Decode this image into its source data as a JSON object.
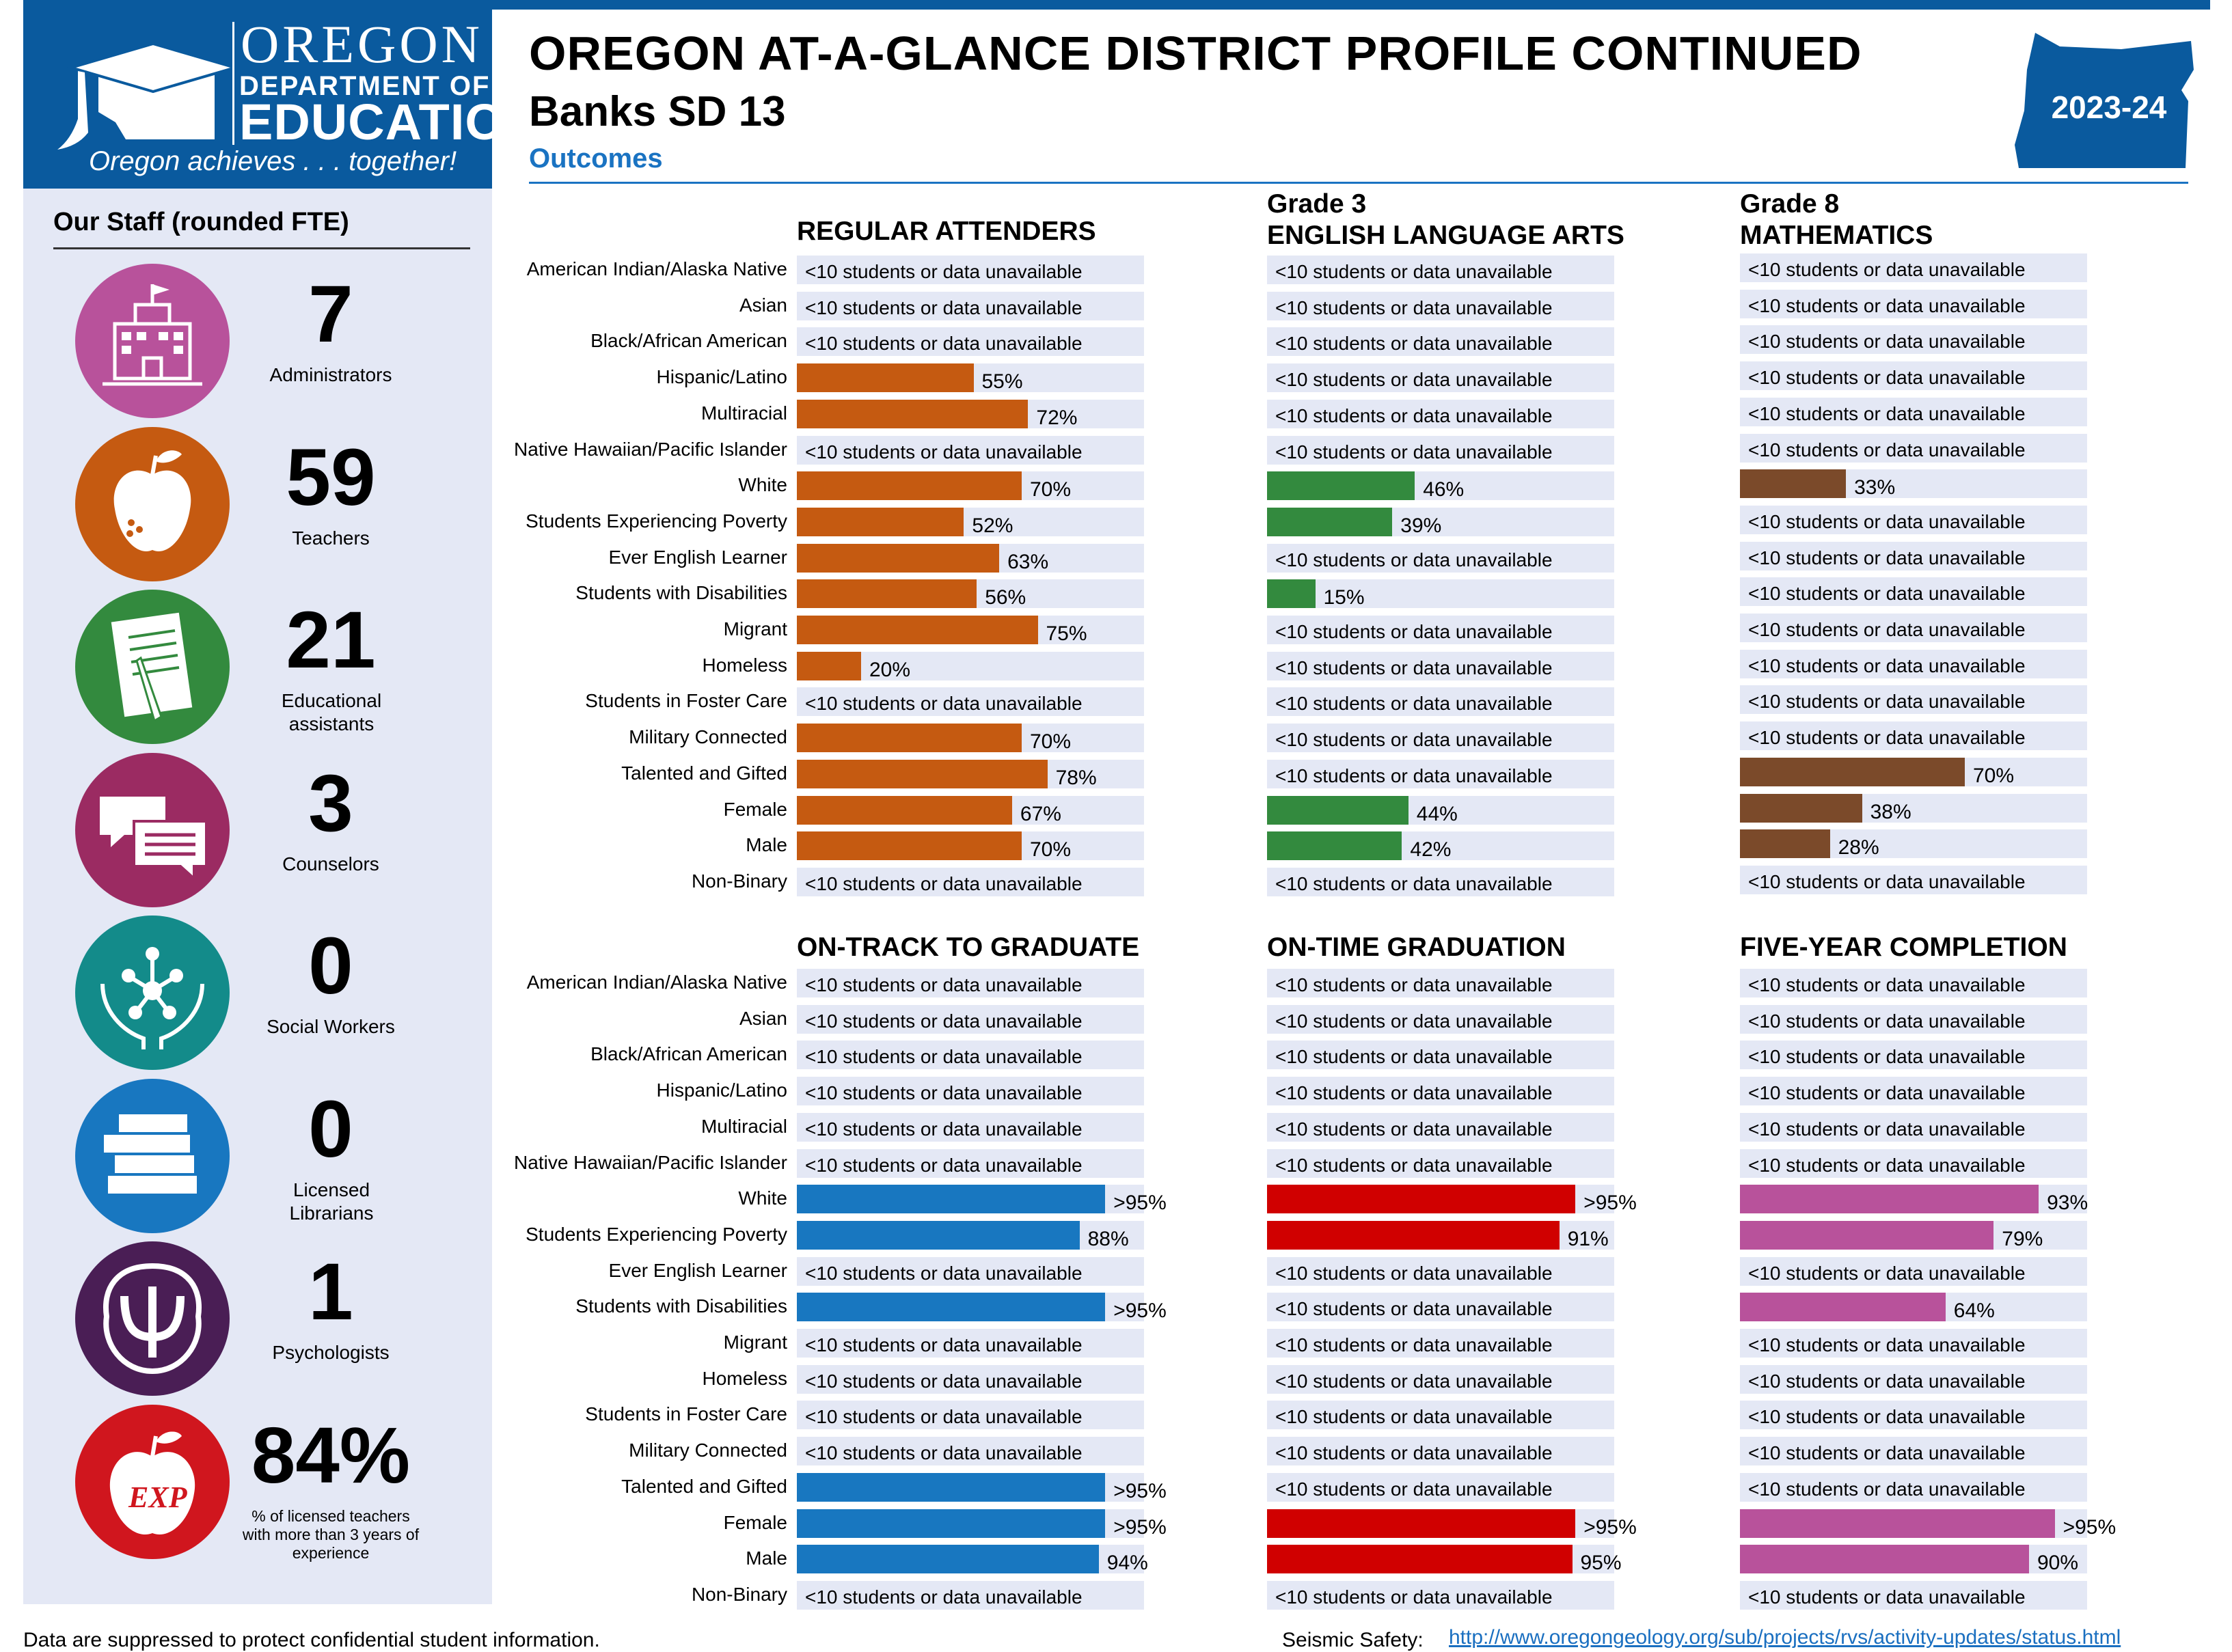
{
  "logo": {
    "oregon": "OREGON",
    "dept": "DEPARTMENT OF",
    "edu": "EDUCATION",
    "tagline": "Oregon achieves . . . together!"
  },
  "header": {
    "title": "OREGON AT-A-GLANCE DISTRICT PROFILE CONTINUED",
    "district": "Banks SD 13",
    "section": "Outcomes",
    "year": "2023-24"
  },
  "colors": {
    "brand": "#0a5a9e",
    "accent": "#1a73c2",
    "track": "#e4e8f5"
  },
  "staff": {
    "title": "Our Staff (rounded FTE)",
    "items": [
      {
        "value": "7",
        "label": "Administrators",
        "icon": "school-building-icon",
        "color": "#b8529b"
      },
      {
        "value": "59",
        "label": "Teachers",
        "icon": "apple-icon",
        "color": "#c55a11"
      },
      {
        "value": "21",
        "label": "Educational assistants",
        "icon": "document-pencil-icon",
        "color": "#338a3e"
      },
      {
        "value": "3",
        "label": "Counselors",
        "icon": "speech-bubbles-icon",
        "color": "#9b2b62"
      },
      {
        "value": "0",
        "label": "Social Workers",
        "icon": "hands-network-icon",
        "color": "#138b8a"
      },
      {
        "value": "0",
        "label": "Licensed Librarians",
        "icon": "books-icon",
        "color": "#1877c0"
      },
      {
        "value": "1",
        "label": "Psychologists",
        "icon": "psi-brain-icon",
        "color": "#4a1e55"
      },
      {
        "value": "84%",
        "label": "% of licensed teachers with more than 3 years of experience",
        "icon": "experienced-apple-icon",
        "color": "#d0161e"
      }
    ]
  },
  "suppressed_text": "<10 students or data unavailable",
  "groups_top": [
    "American Indian/Alaska Native",
    "Asian",
    "Black/African American",
    "Hispanic/Latino",
    "Multiracial",
    "Native Hawaiian/Pacific Islander",
    "White",
    "Students Experiencing Poverty",
    "Ever English Learner",
    "Students with Disabilities",
    "Migrant",
    "Homeless",
    "Students in Foster Care",
    "Military Connected",
    "Talented and Gifted",
    "Female",
    "Male",
    "Non-Binary"
  ],
  "groups_bottom": [
    "American Indian/Alaska Native",
    "Asian",
    "Black/African American",
    "Hispanic/Latino",
    "Multiracial",
    "Native Hawaiian/Pacific Islander",
    "White",
    "Students Experiencing Poverty",
    "Ever English Learner",
    "Students with Disabilities",
    "Migrant",
    "Homeless",
    "Students in Foster Care",
    "Military Connected",
    "Talented and Gifted",
    "Female",
    "Male",
    "Non-Binary"
  ],
  "chart_data": [
    {
      "type": "bar",
      "title": "REGULAR ATTENDERS",
      "color": "#c55a11",
      "xlim": [
        0,
        100
      ],
      "values": [
        null,
        null,
        null,
        55,
        72,
        null,
        70,
        52,
        63,
        56,
        75,
        20,
        null,
        70,
        78,
        67,
        70,
        null
      ],
      "labels": [
        "",
        "",
        "",
        "55%",
        "72%",
        "",
        "70%",
        "52%",
        "63%",
        "56%",
        "75%",
        "20%",
        "",
        "70%",
        "78%",
        "67%",
        "70%",
        ""
      ]
    },
    {
      "type": "bar",
      "title": "Grade 3\nENGLISH LANGUAGE ARTS",
      "color": "#338a3e",
      "xlim": [
        0,
        100
      ],
      "values": [
        null,
        null,
        null,
        null,
        null,
        null,
        46,
        39,
        null,
        15,
        null,
        null,
        null,
        null,
        null,
        44,
        42,
        null
      ],
      "labels": [
        "",
        "",
        "",
        "",
        "",
        "",
        "46%",
        "39%",
        "",
        "15%",
        "",
        "",
        "",
        "",
        "",
        "44%",
        "42%",
        ""
      ]
    },
    {
      "type": "bar",
      "title": "Grade 8\nMATHEMATICS",
      "color": "#7b4a2a",
      "xlim": [
        0,
        100
      ],
      "values": [
        null,
        null,
        null,
        null,
        null,
        null,
        33,
        null,
        null,
        null,
        null,
        null,
        null,
        null,
        70,
        38,
        28,
        null
      ],
      "labels": [
        "",
        "",
        "",
        "",
        "",
        "",
        "33%",
        "",
        "",
        "",
        "",
        "",
        "",
        "",
        "70%",
        "38%",
        "28%",
        ""
      ]
    },
    {
      "type": "bar",
      "title": "ON-TRACK TO GRADUATE",
      "color": "#1877c0",
      "xlim": [
        0,
        100
      ],
      "values": [
        null,
        null,
        null,
        null,
        null,
        null,
        96,
        88,
        null,
        96,
        null,
        null,
        null,
        null,
        96,
        96,
        94,
        null
      ],
      "labels": [
        "",
        "",
        "",
        "",
        "",
        "",
        ">95%",
        "88%",
        "",
        ">95%",
        "",
        "",
        "",
        "",
        ">95%",
        ">95%",
        "94%",
        ""
      ]
    },
    {
      "type": "bar",
      "title": "ON-TIME GRADUATION",
      "color": "#d00000",
      "xlim": [
        0,
        100
      ],
      "values": [
        null,
        null,
        null,
        null,
        null,
        null,
        96,
        91,
        null,
        null,
        null,
        null,
        null,
        null,
        null,
        96,
        95,
        null
      ],
      "labels": [
        "",
        "",
        "",
        "",
        "",
        "",
        ">95%",
        "91%",
        "",
        "",
        "",
        "",
        "",
        "",
        "",
        ">95%",
        "95%",
        ""
      ]
    },
    {
      "type": "bar",
      "title": "FIVE-YEAR COMPLETION",
      "color": "#b8529b",
      "xlim": [
        0,
        100
      ],
      "values": [
        null,
        null,
        null,
        null,
        null,
        null,
        93,
        79,
        null,
        64,
        null,
        null,
        null,
        null,
        null,
        98,
        90,
        null
      ],
      "labels": [
        "",
        "",
        "",
        "",
        "",
        "",
        "93%",
        "79%",
        "",
        "64%",
        "",
        "",
        "",
        "",
        "",
        ">95%",
        "90%",
        ""
      ]
    }
  ],
  "footer": {
    "note": "Data are suppressed to protect confidential student information.",
    "seismic_label": "Seismic Safety:",
    "seismic_url": "http://www.oregongeology.org/sub/projects/rvs/activity-updates/status.html"
  }
}
